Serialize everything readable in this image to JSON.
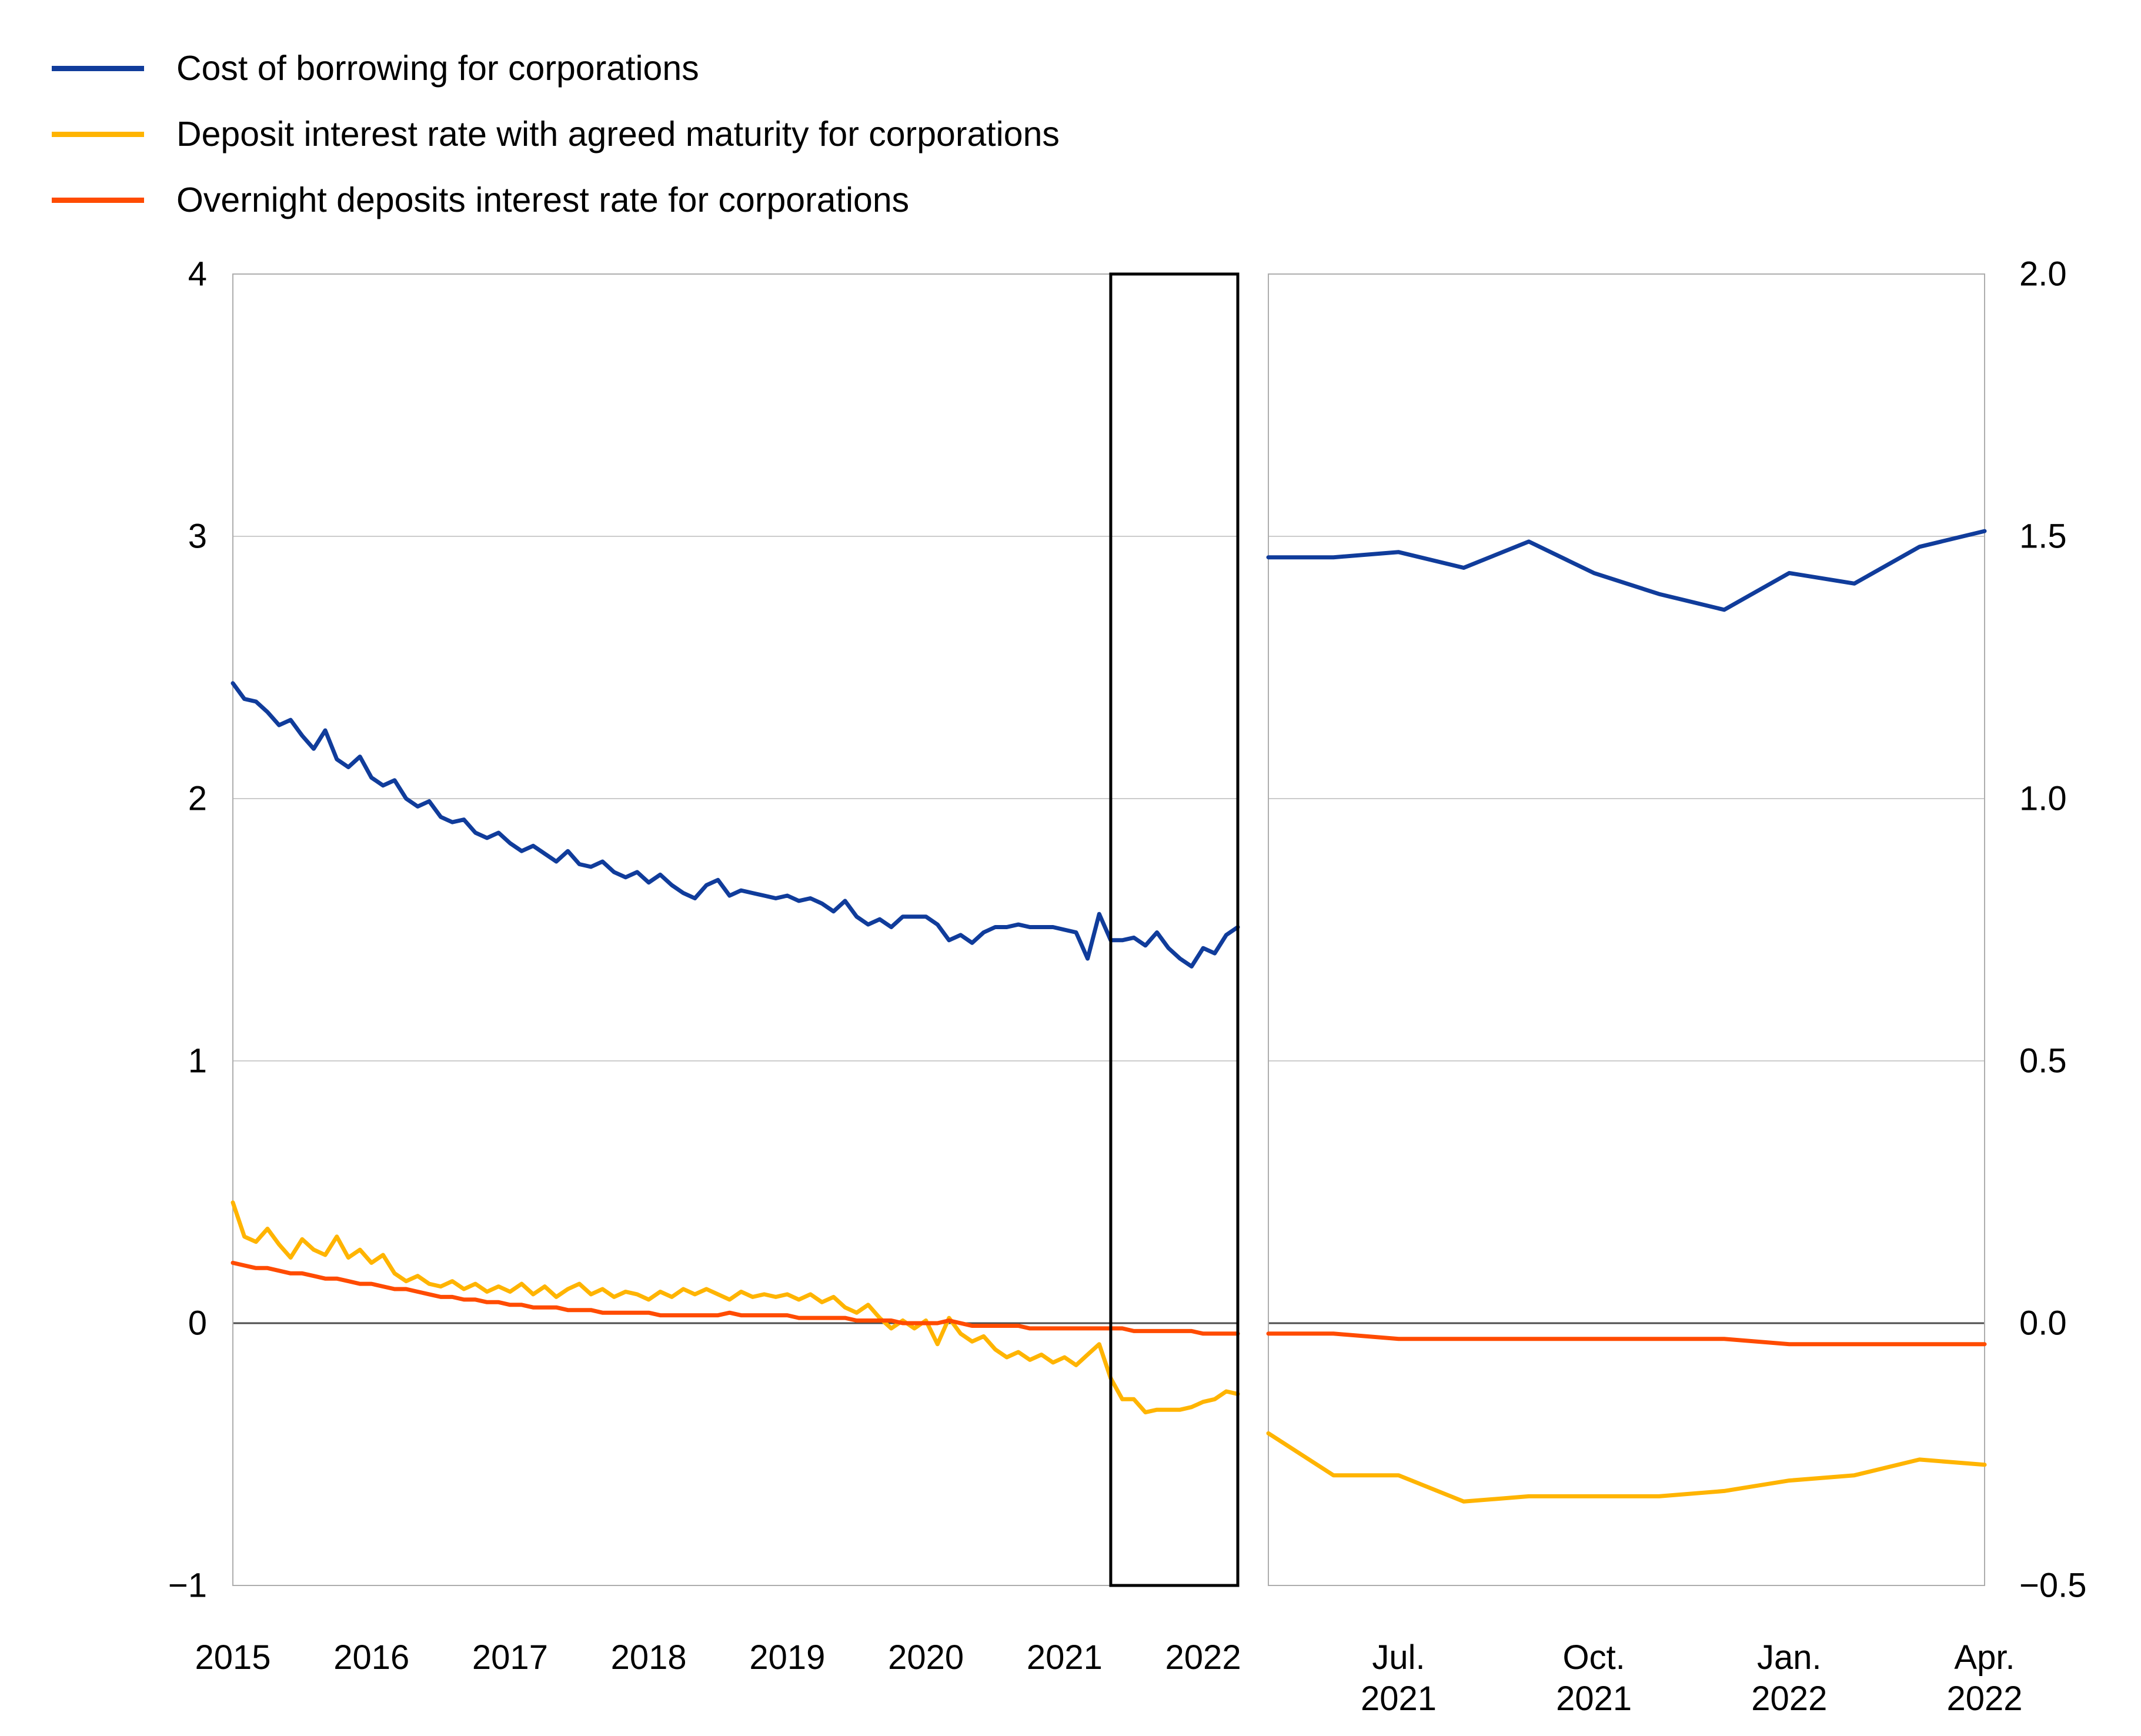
{
  "chart_data": {
    "type": "line",
    "title": "",
    "background": "#FFFFFF",
    "grid_color": "#CCCCCC",
    "zero_line_color": "#4D4D4D",
    "border_color": "#ADADAD",
    "highlight_box_color": "#000000",
    "legend": [
      {
        "label": "Cost of borrowing for corporations",
        "color": "#103C9B"
      },
      {
        "label": "Deposit interest rate with agreed maturity for corporations",
        "color": "#FFB400"
      },
      {
        "label": "Overnight deposits interest rate for corporations",
        "color": "#FF4B00"
      }
    ],
    "left_panel": {
      "x_unit": "month",
      "x_start": "2015-01",
      "x_end": "2022-04",
      "n_points": 88,
      "ylim": [
        -1,
        4
      ],
      "y_ticks": [
        {
          "label": "4",
          "value": 4
        },
        {
          "label": "3",
          "value": 3
        },
        {
          "label": "2",
          "value": 2
        },
        {
          "label": "1",
          "value": 1
        },
        {
          "label": "0",
          "value": 0
        },
        {
          "label": "−1",
          "value": -1
        }
      ],
      "x_ticks": [
        {
          "label": "2015",
          "month_index": 0
        },
        {
          "label": "2016",
          "month_index": 12
        },
        {
          "label": "2017",
          "month_index": 24
        },
        {
          "label": "2018",
          "month_index": 36
        },
        {
          "label": "2019",
          "month_index": 48
        },
        {
          "label": "2020",
          "month_index": 60
        },
        {
          "label": "2021",
          "month_index": 72
        },
        {
          "label": "2022",
          "month_index": 84
        }
      ],
      "highlight_box": {
        "from_month_index": 76,
        "to_month_index": 87,
        "meaning": "zoom window May 2021 - Apr 2022"
      },
      "series": [
        {
          "name": "Cost of borrowing for corporations",
          "color": "#103C9B",
          "values": [
            2.44,
            2.38,
            2.37,
            2.33,
            2.28,
            2.3,
            2.24,
            2.19,
            2.26,
            2.15,
            2.12,
            2.16,
            2.08,
            2.05,
            2.07,
            2.0,
            1.97,
            1.99,
            1.93,
            1.91,
            1.92,
            1.87,
            1.85,
            1.87,
            1.83,
            1.8,
            1.82,
            1.79,
            1.76,
            1.8,
            1.75,
            1.74,
            1.76,
            1.72,
            1.7,
            1.72,
            1.68,
            1.71,
            1.67,
            1.64,
            1.62,
            1.67,
            1.69,
            1.63,
            1.65,
            1.64,
            1.63,
            1.62,
            1.63,
            1.61,
            1.62,
            1.6,
            1.57,
            1.61,
            1.55,
            1.52,
            1.54,
            1.51,
            1.55,
            1.55,
            1.55,
            1.52,
            1.46,
            1.48,
            1.45,
            1.49,
            1.51,
            1.51,
            1.52,
            1.51,
            1.51,
            1.51,
            1.5,
            1.49,
            1.39,
            1.56,
            1.46,
            1.46,
            1.47,
            1.44,
            1.49,
            1.43,
            1.39,
            1.36,
            1.43,
            1.41,
            1.48,
            1.51
          ]
        },
        {
          "name": "Deposit interest rate with agreed maturity for corporations",
          "color": "#FFB400",
          "values": [
            0.46,
            0.33,
            0.31,
            0.36,
            0.3,
            0.25,
            0.32,
            0.28,
            0.26,
            0.33,
            0.25,
            0.28,
            0.23,
            0.26,
            0.19,
            0.16,
            0.18,
            0.15,
            0.14,
            0.16,
            0.13,
            0.15,
            0.12,
            0.14,
            0.12,
            0.15,
            0.11,
            0.14,
            0.1,
            0.13,
            0.15,
            0.11,
            0.13,
            0.1,
            0.12,
            0.11,
            0.09,
            0.12,
            0.1,
            0.13,
            0.11,
            0.13,
            0.11,
            0.09,
            0.12,
            0.1,
            0.11,
            0.1,
            0.11,
            0.09,
            0.11,
            0.08,
            0.1,
            0.06,
            0.04,
            0.07,
            0.02,
            -0.02,
            0.01,
            -0.02,
            0.01,
            -0.08,
            0.02,
            -0.04,
            -0.07,
            -0.05,
            -0.1,
            -0.13,
            -0.11,
            -0.14,
            -0.12,
            -0.15,
            -0.13,
            -0.16,
            -0.12,
            -0.08,
            -0.21,
            -0.29,
            -0.29,
            -0.34,
            -0.33,
            -0.33,
            -0.33,
            -0.32,
            -0.3,
            -0.29,
            -0.26,
            -0.27
          ]
        },
        {
          "name": "Overnight deposits interest rate for corporations",
          "color": "#FF4B00",
          "values": [
            0.23,
            0.22,
            0.21,
            0.21,
            0.2,
            0.19,
            0.19,
            0.18,
            0.17,
            0.17,
            0.16,
            0.15,
            0.15,
            0.14,
            0.13,
            0.13,
            0.12,
            0.11,
            0.1,
            0.1,
            0.09,
            0.09,
            0.08,
            0.08,
            0.07,
            0.07,
            0.06,
            0.06,
            0.06,
            0.05,
            0.05,
            0.05,
            0.04,
            0.04,
            0.04,
            0.04,
            0.04,
            0.03,
            0.03,
            0.03,
            0.03,
            0.03,
            0.03,
            0.04,
            0.03,
            0.03,
            0.03,
            0.03,
            0.03,
            0.02,
            0.02,
            0.02,
            0.02,
            0.02,
            0.01,
            0.01,
            0.01,
            0.01,
            0.0,
            0.0,
            0.0,
            0.0,
            0.01,
            0.0,
            -0.01,
            -0.01,
            -0.01,
            -0.01,
            -0.01,
            -0.02,
            -0.02,
            -0.02,
            -0.02,
            -0.02,
            -0.02,
            -0.02,
            -0.02,
            -0.02,
            -0.03,
            -0.03,
            -0.03,
            -0.03,
            -0.03,
            -0.03,
            -0.04,
            -0.04,
            -0.04,
            -0.04
          ]
        }
      ]
    },
    "right_panel": {
      "x_unit": "month",
      "x_start": "2021-05",
      "x_end": "2022-04",
      "n_points": 12,
      "ylim": [
        -0.5,
        2.0
      ],
      "y_ticks": [
        {
          "label": "2.0",
          "value": 2.0
        },
        {
          "label": "1.5",
          "value": 1.5
        },
        {
          "label": "1.0",
          "value": 1.0
        },
        {
          "label": "0.5",
          "value": 0.5
        },
        {
          "label": "0.0",
          "value": 0.0
        },
        {
          "label": "−0.5",
          "value": -0.5
        }
      ],
      "x_ticks": [
        {
          "lines": [
            "Jul.",
            "2021"
          ],
          "month_index": 2
        },
        {
          "lines": [
            "Oct.",
            "2021"
          ],
          "month_index": 5
        },
        {
          "lines": [
            "Jan.",
            "2022"
          ],
          "month_index": 8
        },
        {
          "lines": [
            "Apr.",
            "2022"
          ],
          "month_index": 11
        }
      ],
      "series": [
        {
          "name": "Cost of borrowing for corporations",
          "color": "#103C9B",
          "values": [
            1.46,
            1.46,
            1.47,
            1.44,
            1.49,
            1.43,
            1.39,
            1.36,
            1.43,
            1.41,
            1.48,
            1.51
          ]
        },
        {
          "name": "Deposit interest rate with agreed maturity for corporations",
          "color": "#FFB400",
          "values": [
            -0.21,
            -0.29,
            -0.29,
            -0.34,
            -0.33,
            -0.33,
            -0.33,
            -0.32,
            -0.3,
            -0.29,
            -0.26,
            -0.27
          ]
        },
        {
          "name": "Overnight deposits interest rate for corporations",
          "color": "#FF4B00",
          "values": [
            -0.02,
            -0.02,
            -0.03,
            -0.03,
            -0.03,
            -0.03,
            -0.03,
            -0.03,
            -0.04,
            -0.04,
            -0.04,
            -0.04
          ]
        }
      ]
    }
  }
}
